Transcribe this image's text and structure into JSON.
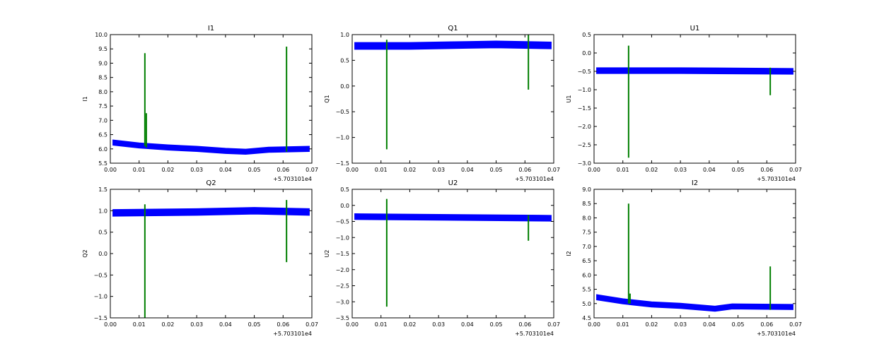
{
  "chart_data": [
    {
      "type": "line",
      "title": "I1",
      "ylabel": "I1",
      "xlim": [
        0,
        0.07
      ],
      "ylim": [
        5.5,
        10
      ],
      "ystep": 0.5,
      "x_offset_label": "+5.703101e4",
      "baseline": {
        "x": [
          0.001,
          0.01,
          0.02,
          0.03,
          0.04,
          0.047,
          0.055,
          0.069
        ],
        "y": [
          6.22,
          6.12,
          6.05,
          6.0,
          5.93,
          5.9,
          5.97,
          6.0
        ],
        "spread": 0.08
      },
      "spikes": [
        {
          "x": 0.012,
          "ymin": 6.1,
          "ymax": 9.35
        },
        {
          "x": 0.0125,
          "ymin": 6.05,
          "ymax": 7.25
        },
        {
          "x": 0.0612,
          "ymin": 5.9,
          "ymax": 9.58
        }
      ]
    },
    {
      "type": "line",
      "title": "Q1",
      "ylabel": "Q1",
      "xlim": [
        0,
        0.07
      ],
      "ylim": [
        -1.5,
        1
      ],
      "ystep": 0.5,
      "x_offset_label": "+5.703101e4",
      "baseline": {
        "x": [
          0.001,
          0.02,
          0.04,
          0.05,
          0.069
        ],
        "y": [
          0.78,
          0.78,
          0.8,
          0.81,
          0.79
        ],
        "spread": 0.06
      },
      "spikes": [
        {
          "x": 0.012,
          "ymin": -1.23,
          "ymax": 0.9
        },
        {
          "x": 0.0612,
          "ymin": -0.07,
          "ymax": 1.0
        }
      ]
    },
    {
      "type": "line",
      "title": "U1",
      "ylabel": "U1",
      "xlim": [
        0,
        0.07
      ],
      "ylim": [
        -3,
        0.5
      ],
      "ystep": 0.5,
      "x_offset_label": "+5.703101e4",
      "baseline": {
        "x": [
          0.001,
          0.03,
          0.069
        ],
        "y": [
          -0.48,
          -0.48,
          -0.5
        ],
        "spread": 0.07
      },
      "spikes": [
        {
          "x": 0.012,
          "ymin": -2.85,
          "ymax": 0.2
        },
        {
          "x": 0.0612,
          "ymin": -1.15,
          "ymax": -0.4
        }
      ]
    },
    {
      "type": "line",
      "title": "Q2",
      "ylabel": "Q2",
      "xlim": [
        0,
        0.07
      ],
      "ylim": [
        -1.5,
        1.5
      ],
      "ystep": 0.5,
      "x_offset_label": "+5.703101e4",
      "baseline": {
        "x": [
          0.001,
          0.03,
          0.05,
          0.069
        ],
        "y": [
          0.95,
          0.97,
          1.0,
          0.97
        ],
        "spread": 0.07
      },
      "spikes": [
        {
          "x": 0.012,
          "ymin": -1.5,
          "ymax": 1.15
        },
        {
          "x": 0.0612,
          "ymin": -0.2,
          "ymax": 1.25
        }
      ]
    },
    {
      "type": "line",
      "title": "U2",
      "ylabel": "U2",
      "xlim": [
        0,
        0.07
      ],
      "ylim": [
        -3.5,
        0.5
      ],
      "ystep": 0.5,
      "x_offset_label": "+5.703101e4",
      "baseline": {
        "x": [
          0.001,
          0.03,
          0.069
        ],
        "y": [
          -0.35,
          -0.37,
          -0.4
        ],
        "spread": 0.08
      },
      "spikes": [
        {
          "x": 0.012,
          "ymin": -3.15,
          "ymax": 0.2
        },
        {
          "x": 0.0612,
          "ymin": -1.1,
          "ymax": -0.3
        }
      ]
    },
    {
      "type": "line",
      "title": "I2",
      "ylabel": "I2",
      "xlim": [
        0,
        0.07
      ],
      "ylim": [
        4.5,
        9
      ],
      "ystep": 0.5,
      "x_offset_label": "+5.703101e4",
      "baseline": {
        "x": [
          0.001,
          0.01,
          0.02,
          0.03,
          0.042,
          0.048,
          0.069
        ],
        "y": [
          5.22,
          5.08,
          4.97,
          4.92,
          4.82,
          4.9,
          4.88
        ],
        "spread": 0.08
      },
      "spikes": [
        {
          "x": 0.012,
          "ymin": 5.0,
          "ymax": 8.5
        },
        {
          "x": 0.0125,
          "ymin": 5.0,
          "ymax": 5.35
        },
        {
          "x": 0.0612,
          "ymin": 4.78,
          "ymax": 6.3
        }
      ]
    }
  ],
  "colors": {
    "baseline": "#0000ff",
    "spike": "#007f00"
  }
}
